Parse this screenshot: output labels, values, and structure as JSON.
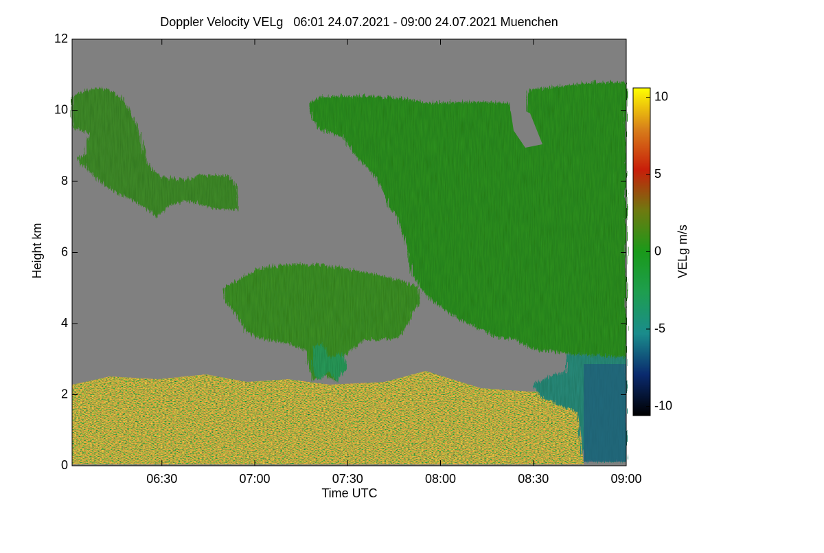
{
  "chart_data": {
    "type": "heatmap",
    "title": "Doppler Velocity VELg   06:01 24.07.2021 - 09:00 24.07.2021 Muenchen",
    "x_label": "Time UTC",
    "y_label": "Height km",
    "colorbar_label": "VELg m/s",
    "xlim": [
      361,
      540
    ],
    "xticks": [
      {
        "value": 390,
        "label": "06:30"
      },
      {
        "value": 420,
        "label": "07:00"
      },
      {
        "value": 450,
        "label": "07:30"
      },
      {
        "value": 480,
        "label": "08:00"
      },
      {
        "value": 510,
        "label": "08:30"
      },
      {
        "value": 540,
        "label": "09:00"
      }
    ],
    "ylim": [
      0,
      12
    ],
    "yticks": [
      0,
      2,
      4,
      6,
      8,
      10,
      12
    ],
    "clim": [
      -10.6,
      10.6
    ],
    "cticks": [
      -10,
      -5,
      0,
      5,
      10
    ],
    "colorscale": [
      "#000000",
      "#0a2a6e",
      "#1a8c8c",
      "#1e9e50",
      "#1a9a1a",
      "#6e7a10",
      "#c81e0a",
      "#d8801a",
      "#ffff00"
    ],
    "background": "#808080"
  }
}
